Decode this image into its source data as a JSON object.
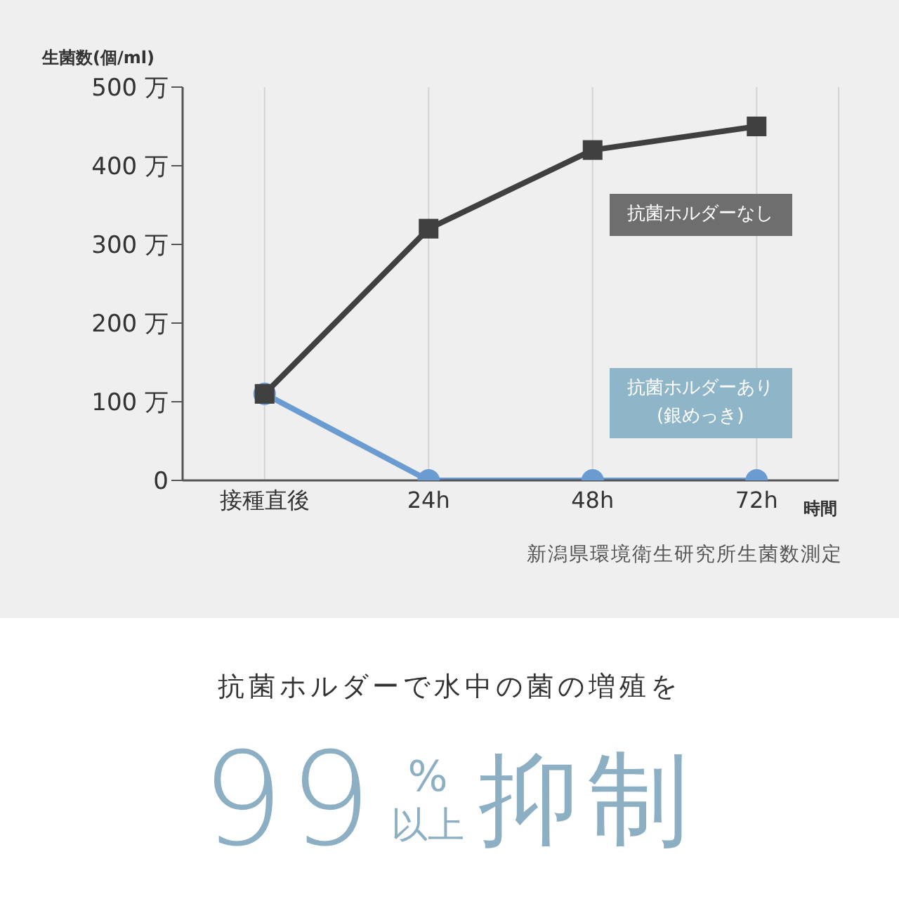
{
  "chart_data": {
    "type": "line",
    "ylabel": "生菌数(個/ml)",
    "xlabel": "時間",
    "categories": [
      "接種直後",
      "24h",
      "48h",
      "72h"
    ],
    "series": [
      {
        "name": "抗菌ホルダーなし",
        "color": "#404040",
        "marker": "square",
        "values": [
          110,
          320,
          420,
          450
        ]
      },
      {
        "name": "抗菌ホルダーあり\n(銀めっき)",
        "color": "#6a9bd1",
        "marker": "circle",
        "values": [
          110,
          0,
          0,
          0
        ]
      }
    ],
    "ylim": [
      0,
      500
    ],
    "yticks": [
      {
        "value": 0,
        "label": "0"
      },
      {
        "value": 100,
        "label": "100 万"
      },
      {
        "value": 200,
        "label": "200 万"
      },
      {
        "value": 300,
        "label": "300 万"
      },
      {
        "value": 400,
        "label": "400 万"
      },
      {
        "value": 500,
        "label": "500 万"
      }
    ],
    "grid": "x",
    "annotations": [
      "新潟県環境衛生研究所生菌数測定",
      "抗菌ホルダーで水中の菌の増殖を",
      "99",
      "%",
      "以上",
      "抑制"
    ]
  }
}
